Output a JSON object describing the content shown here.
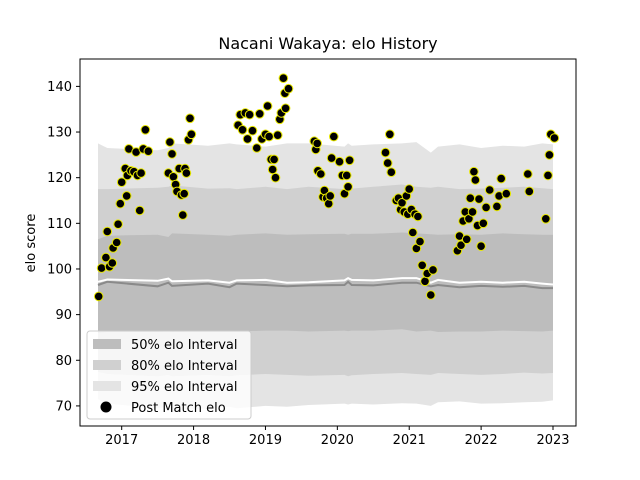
{
  "chart_data": {
    "type": "scatter",
    "title": "Nacani Wakaya: elo History",
    "xlabel": "",
    "ylabel": "elo score",
    "xlim": [
      2016.42,
      2023.32
    ],
    "ylim": [
      65.6,
      146.0
    ],
    "x_ticks": [
      2017,
      2018,
      2019,
      2020,
      2021,
      2022,
      2023
    ],
    "x_tick_labels": [
      "2017",
      "2018",
      "2019",
      "2020",
      "2021",
      "2022",
      "2023"
    ],
    "y_ticks": [
      70,
      80,
      90,
      100,
      110,
      120,
      130,
      140
    ],
    "y_tick_labels": [
      "70",
      "80",
      "90",
      "100",
      "110",
      "120",
      "130",
      "140"
    ],
    "grid": false,
    "legend_position": "lower-left",
    "colors": {
      "band95": "#e4e4e4",
      "band80": "#d0d0d0",
      "band50": "#bdbdbd",
      "median": "#8a8a8a",
      "mean": "#ffffff",
      "point_fill": "#000000",
      "point_edge": "#e8e800"
    },
    "legend": [
      {
        "label": "50% elo Interval",
        "kind": "band50"
      },
      {
        "label": "80% elo Interval",
        "kind": "band80"
      },
      {
        "label": "95% elo Interval",
        "kind": "band95"
      },
      {
        "label": "Post Match elo",
        "kind": "point"
      }
    ],
    "bands": {
      "x": [
        2016.67,
        2016.8,
        2017.5,
        2017.65,
        2017.7,
        2018.2,
        2018.5,
        2018.6,
        2019.0,
        2019.3,
        2019.6,
        2020.1,
        2020.15,
        2020.2,
        2020.5,
        2020.9,
        2021.1,
        2021.3,
        2021.4,
        2021.7,
        2022.0,
        2022.3,
        2022.6,
        2022.85,
        2023.0
      ],
      "band95_low": [
        71.5,
        70.5,
        69.5,
        69.8,
        69.0,
        69.5,
        69.8,
        69.5,
        70.0,
        69.8,
        70.2,
        70.5,
        70.3,
        70.5,
        70.3,
        70.6,
        70.5,
        70.0,
        70.8,
        71.0,
        70.5,
        70.6,
        70.8,
        70.9,
        71.2
      ],
      "band95_high": [
        127.5,
        126.5,
        126.0,
        126.5,
        127.5,
        127.0,
        127.5,
        127.3,
        126.8,
        127.5,
        127.5,
        126.8,
        127.5,
        127.0,
        127.3,
        127.5,
        127.8,
        125.5,
        126.8,
        127.3,
        126.5,
        127.0,
        126.8,
        127.5,
        127.3
      ],
      "band80_low": [
        77.5,
        77.0,
        76.5,
        76.8,
        76.5,
        76.8,
        76.5,
        76.7,
        77.0,
        76.8,
        76.6,
        76.8,
        76.5,
        76.7,
        77.0,
        77.2,
        77.0,
        76.8,
        77.2,
        77.0,
        76.8,
        77.0,
        77.3,
        77.1,
        77.2
      ],
      "band80_high": [
        117.5,
        117.5,
        117.8,
        118.0,
        118.3,
        117.6,
        117.7,
        117.5,
        118.0,
        117.5,
        118.0,
        117.5,
        117.8,
        117.6,
        118.0,
        118.5,
        118.0,
        117.8,
        118.0,
        117.5,
        117.6,
        117.8,
        118.0,
        117.7,
        117.5
      ],
      "band50_low": [
        86.0,
        86.2,
        86.2,
        86.4,
        86.2,
        86.5,
        86.4,
        86.3,
        86.5,
        86.5,
        86.3,
        86.5,
        86.4,
        86.5,
        86.5,
        86.8,
        86.3,
        86.5,
        86.2,
        86.3,
        86.3,
        86.5,
        86.4,
        86.3,
        86.5
      ],
      "band50_high": [
        106.5,
        107.3,
        107.5,
        107.0,
        107.8,
        107.5,
        107.3,
        107.5,
        107.8,
        107.5,
        107.6,
        107.7,
        107.5,
        107.7,
        107.7,
        108.0,
        107.8,
        107.6,
        107.5,
        107.6,
        107.5,
        107.8,
        107.6,
        107.5,
        107.5
      ],
      "median": [
        96.5,
        97.2,
        96.2,
        97.0,
        96.3,
        96.8,
        96.0,
        96.8,
        96.5,
        96.2,
        96.4,
        96.5,
        97.2,
        96.5,
        96.4,
        97.0,
        97.0,
        96.2,
        96.5,
        96.0,
        96.3,
        96.1,
        96.3,
        95.8,
        95.8
      ],
      "mean": [
        97.2,
        97.7,
        97.4,
        97.9,
        97.3,
        97.5,
        97.0,
        97.5,
        97.6,
        97.0,
        97.1,
        97.5,
        98.0,
        97.6,
        97.5,
        98.0,
        98.0,
        97.0,
        97.6,
        97.0,
        97.2,
        97.0,
        97.2,
        96.8,
        96.6
      ]
    },
    "points": [
      {
        "x": 2016.68,
        "y": 94.0
      },
      {
        "x": 2016.72,
        "y": 100.2
      },
      {
        "x": 2016.78,
        "y": 102.5
      },
      {
        "x": 2016.8,
        "y": 108.2
      },
      {
        "x": 2016.83,
        "y": 100.5
      },
      {
        "x": 2016.87,
        "y": 101.3
      },
      {
        "x": 2016.88,
        "y": 104.6
      },
      {
        "x": 2016.93,
        "y": 105.8
      },
      {
        "x": 2016.95,
        "y": 109.8
      },
      {
        "x": 2016.98,
        "y": 114.3
      },
      {
        "x": 2017.0,
        "y": 119.0
      },
      {
        "x": 2017.05,
        "y": 122.0
      },
      {
        "x": 2017.07,
        "y": 116.0
      },
      {
        "x": 2017.08,
        "y": 120.5
      },
      {
        "x": 2017.1,
        "y": 126.3
      },
      {
        "x": 2017.13,
        "y": 121.5
      },
      {
        "x": 2017.17,
        "y": 121.3
      },
      {
        "x": 2017.2,
        "y": 125.6
      },
      {
        "x": 2017.22,
        "y": 120.5
      },
      {
        "x": 2017.25,
        "y": 112.8
      },
      {
        "x": 2017.27,
        "y": 121.0
      },
      {
        "x": 2017.3,
        "y": 126.3
      },
      {
        "x": 2017.33,
        "y": 130.5
      },
      {
        "x": 2017.37,
        "y": 125.8
      },
      {
        "x": 2017.65,
        "y": 121.0
      },
      {
        "x": 2017.67,
        "y": 127.8
      },
      {
        "x": 2017.7,
        "y": 125.2
      },
      {
        "x": 2017.72,
        "y": 120.2
      },
      {
        "x": 2017.75,
        "y": 118.5
      },
      {
        "x": 2017.77,
        "y": 117.0
      },
      {
        "x": 2017.8,
        "y": 122.0
      },
      {
        "x": 2017.83,
        "y": 116.2
      },
      {
        "x": 2017.85,
        "y": 111.8
      },
      {
        "x": 2017.87,
        "y": 116.5
      },
      {
        "x": 2017.88,
        "y": 122.0
      },
      {
        "x": 2017.9,
        "y": 121.0
      },
      {
        "x": 2017.93,
        "y": 128.3
      },
      {
        "x": 2017.95,
        "y": 133.0
      },
      {
        "x": 2017.97,
        "y": 129.5
      },
      {
        "x": 2018.62,
        "y": 131.5
      },
      {
        "x": 2018.65,
        "y": 133.8
      },
      {
        "x": 2018.68,
        "y": 130.5
      },
      {
        "x": 2018.72,
        "y": 134.2
      },
      {
        "x": 2018.75,
        "y": 128.5
      },
      {
        "x": 2018.78,
        "y": 133.8
      },
      {
        "x": 2018.82,
        "y": 130.3
      },
      {
        "x": 2018.88,
        "y": 126.5
      },
      {
        "x": 2018.92,
        "y": 134.0
      },
      {
        "x": 2018.95,
        "y": 128.5
      },
      {
        "x": 2019.0,
        "y": 129.5
      },
      {
        "x": 2019.03,
        "y": 135.7
      },
      {
        "x": 2019.05,
        "y": 129.0
      },
      {
        "x": 2019.08,
        "y": 124.0
      },
      {
        "x": 2019.1,
        "y": 121.8
      },
      {
        "x": 2019.12,
        "y": 124.0
      },
      {
        "x": 2019.14,
        "y": 120.0
      },
      {
        "x": 2019.17,
        "y": 129.3
      },
      {
        "x": 2019.2,
        "y": 132.8
      },
      {
        "x": 2019.22,
        "y": 134.2
      },
      {
        "x": 2019.25,
        "y": 141.8
      },
      {
        "x": 2019.27,
        "y": 138.5
      },
      {
        "x": 2019.28,
        "y": 135.2
      },
      {
        "x": 2019.32,
        "y": 139.5
      },
      {
        "x": 2019.68,
        "y": 128.0
      },
      {
        "x": 2019.7,
        "y": 126.2
      },
      {
        "x": 2019.72,
        "y": 127.5
      },
      {
        "x": 2019.73,
        "y": 121.5
      },
      {
        "x": 2019.77,
        "y": 120.8
      },
      {
        "x": 2019.8,
        "y": 115.8
      },
      {
        "x": 2019.82,
        "y": 117.2
      },
      {
        "x": 2019.85,
        "y": 115.5
      },
      {
        "x": 2019.88,
        "y": 114.3
      },
      {
        "x": 2019.9,
        "y": 116.0
      },
      {
        "x": 2019.92,
        "y": 124.3
      },
      {
        "x": 2019.95,
        "y": 129.0
      },
      {
        "x": 2020.03,
        "y": 123.5
      },
      {
        "x": 2020.07,
        "y": 120.5
      },
      {
        "x": 2020.1,
        "y": 116.5
      },
      {
        "x": 2020.13,
        "y": 120.5
      },
      {
        "x": 2020.15,
        "y": 118.0
      },
      {
        "x": 2020.17,
        "y": 123.8
      },
      {
        "x": 2020.67,
        "y": 125.5
      },
      {
        "x": 2020.7,
        "y": 123.2
      },
      {
        "x": 2020.73,
        "y": 129.5
      },
      {
        "x": 2020.75,
        "y": 121.2
      },
      {
        "x": 2020.82,
        "y": 115.0
      },
      {
        "x": 2020.85,
        "y": 115.5
      },
      {
        "x": 2020.88,
        "y": 113.0
      },
      {
        "x": 2020.9,
        "y": 114.5
      },
      {
        "x": 2020.93,
        "y": 112.5
      },
      {
        "x": 2020.96,
        "y": 116.0
      },
      {
        "x": 2020.98,
        "y": 112.0
      },
      {
        "x": 2021.0,
        "y": 117.5
      },
      {
        "x": 2021.03,
        "y": 113.0
      },
      {
        "x": 2021.05,
        "y": 108.0
      },
      {
        "x": 2021.08,
        "y": 112.0
      },
      {
        "x": 2021.1,
        "y": 104.5
      },
      {
        "x": 2021.12,
        "y": 111.5
      },
      {
        "x": 2021.15,
        "y": 106.0
      },
      {
        "x": 2021.18,
        "y": 100.8
      },
      {
        "x": 2021.22,
        "y": 97.3
      },
      {
        "x": 2021.25,
        "y": 99.0
      },
      {
        "x": 2021.3,
        "y": 94.3
      },
      {
        "x": 2021.33,
        "y": 99.8
      },
      {
        "x": 2021.67,
        "y": 104.0
      },
      {
        "x": 2021.7,
        "y": 107.2
      },
      {
        "x": 2021.72,
        "y": 105.2
      },
      {
        "x": 2021.75,
        "y": 110.5
      },
      {
        "x": 2021.78,
        "y": 112.5
      },
      {
        "x": 2021.8,
        "y": 106.5
      },
      {
        "x": 2021.83,
        "y": 111.0
      },
      {
        "x": 2021.85,
        "y": 115.5
      },
      {
        "x": 2021.88,
        "y": 112.5
      },
      {
        "x": 2021.9,
        "y": 121.3
      },
      {
        "x": 2021.92,
        "y": 119.5
      },
      {
        "x": 2021.95,
        "y": 109.5
      },
      {
        "x": 2021.97,
        "y": 115.3
      },
      {
        "x": 2022.0,
        "y": 105.0
      },
      {
        "x": 2022.03,
        "y": 110.0
      },
      {
        "x": 2022.07,
        "y": 113.5
      },
      {
        "x": 2022.12,
        "y": 117.3
      },
      {
        "x": 2022.22,
        "y": 113.7
      },
      {
        "x": 2022.25,
        "y": 116.0
      },
      {
        "x": 2022.28,
        "y": 119.8
      },
      {
        "x": 2022.35,
        "y": 116.5
      },
      {
        "x": 2022.65,
        "y": 120.8
      },
      {
        "x": 2022.67,
        "y": 117.0
      },
      {
        "x": 2022.9,
        "y": 111.0
      },
      {
        "x": 2022.93,
        "y": 120.5
      },
      {
        "x": 2022.95,
        "y": 125.0
      },
      {
        "x": 2022.97,
        "y": 129.5
      },
      {
        "x": 2023.02,
        "y": 128.7
      }
    ]
  }
}
